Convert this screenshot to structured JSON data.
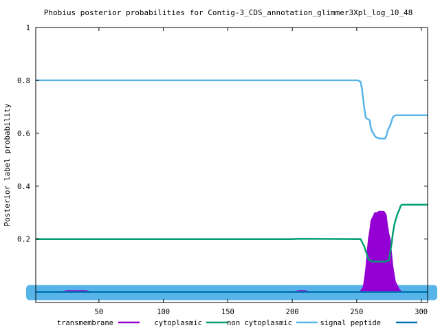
{
  "chart_data": {
    "type": "line",
    "title": "Phobius posterior probabilities for Contig-3_CDS_annotation_glimmer3Xpl_log_10_48",
    "xlabel": "",
    "ylabel": "Posterior label probability",
    "xlim": [
      1,
      305
    ],
    "ylim": [
      -0.04,
      1.0
    ],
    "x_ticks": [
      50,
      100,
      150,
      200,
      250,
      300
    ],
    "x_tick_labels": [
      "50",
      "100",
      "150",
      "200",
      "250",
      "300"
    ],
    "y_ticks": [
      0.2,
      0.4,
      0.6,
      0.8,
      1.0
    ],
    "y_tick_labels": [
      "0.2",
      "0.4",
      "0.6",
      "0.8",
      "1"
    ],
    "grid": false,
    "legend_position": "bottom",
    "series": [
      {
        "name": "transmembrane",
        "color": "#9400d3",
        "style": "impulses",
        "x": [
          1,
          20,
          25,
          40,
          45,
          200,
          205,
          210,
          215,
          250,
          252,
          254,
          255,
          256,
          257,
          258,
          259,
          260,
          261,
          262,
          263,
          264,
          265,
          266,
          267,
          268,
          269,
          270,
          271,
          272,
          273,
          274,
          275,
          276,
          277,
          278,
          279,
          280,
          281,
          282,
          283,
          284,
          285,
          286,
          287,
          305
        ],
        "y": [
          0,
          0,
          0.005,
          0.005,
          0,
          0,
          0.005,
          0.005,
          0,
          0,
          0,
          0.01,
          0.02,
          0.05,
          0.09,
          0.15,
          0.2,
          0.23,
          0.27,
          0.28,
          0.29,
          0.3,
          0.3,
          0.3,
          0.305,
          0.305,
          0.305,
          0.305,
          0.305,
          0.3,
          0.29,
          0.25,
          0.22,
          0.2,
          0.15,
          0.1,
          0.07,
          0.04,
          0.03,
          0.02,
          0.01,
          0.005,
          0,
          0,
          0,
          0
        ]
      },
      {
        "name": "cytoplasmic",
        "color": "#009e73",
        "style": "lines",
        "x": [
          1,
          200,
          205,
          251,
          253,
          254,
          255,
          256,
          257,
          258,
          259,
          260,
          262,
          268,
          272,
          275,
          276,
          277,
          278,
          279,
          280,
          281,
          282,
          283,
          284,
          285,
          305
        ],
        "y": [
          0.2,
          0.2,
          0.201,
          0.2,
          0.2,
          0.19,
          0.18,
          0.17,
          0.155,
          0.14,
          0.125,
          0.12,
          0.115,
          0.115,
          0.115,
          0.12,
          0.15,
          0.18,
          0.22,
          0.25,
          0.27,
          0.285,
          0.3,
          0.31,
          0.325,
          0.33,
          0.33
        ]
      },
      {
        "name": "non cytoplasmic",
        "color": "#56b4e9",
        "style": "lines",
        "x": [
          1,
          251,
          253,
          254,
          255,
          256,
          257,
          258,
          260,
          261,
          262,
          263,
          264,
          265,
          268,
          270,
          272,
          273,
          274,
          275,
          276,
          277,
          278,
          279,
          280,
          305
        ],
        "y": [
          0.8,
          0.8,
          0.795,
          0.77,
          0.73,
          0.69,
          0.66,
          0.655,
          0.65,
          0.62,
          0.605,
          0.6,
          0.59,
          0.585,
          0.58,
          0.58,
          0.58,
          0.59,
          0.61,
          0.62,
          0.63,
          0.645,
          0.66,
          0.665,
          0.668,
          0.668
        ]
      },
      {
        "name": "signal peptide",
        "color": "#0072b2",
        "style": "lines",
        "x": [
          1,
          305
        ],
        "y": [
          0,
          0
        ]
      }
    ]
  }
}
